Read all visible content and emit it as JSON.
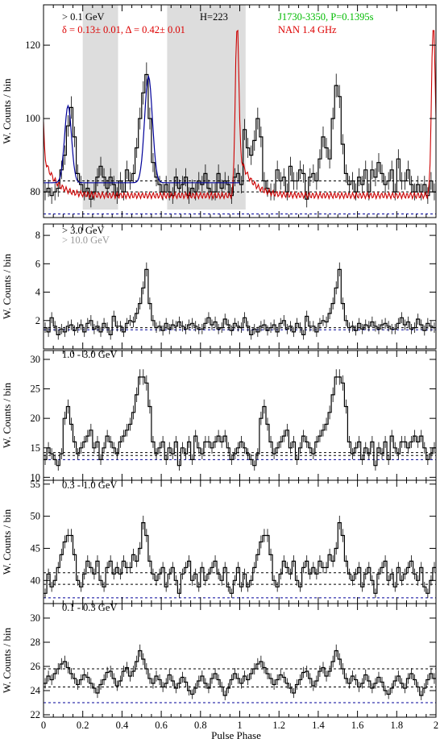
{
  "figure": {
    "xlabel": "Pulse Phase",
    "ylabel": "W. Counts / bin",
    "colors": {
      "histogram": "#000000",
      "radio": "#cc0000",
      "fit": "#000099",
      "bg_level": "#000000",
      "shaded": "#dddddd",
      "pulsar_label": "#00bb00",
      "delta_label": "#dd0000",
      "grey_label": "#999999"
    }
  },
  "chart_data": [
    {
      "type": "line",
      "panel": "top",
      "energy_label": "> 0.1 GeV",
      "extra_labels": {
        "htest": "H=223",
        "pulsar": "J1730-3350, P=0.1395s",
        "radio": "NAN 1.4 GHz",
        "delta": "δ = 0.13± 0.01, Δ = 0.42± 0.01"
      },
      "xlim": [
        0,
        2
      ],
      "ylim": [
        73,
        131
      ],
      "yticks": [
        80,
        100,
        120
      ],
      "xticks": [
        0,
        0.2,
        0.4,
        0.6,
        0.8,
        1,
        1.2,
        1.4,
        1.6,
        1.8,
        2
      ],
      "shaded_phase_ranges": [
        [
          0.2,
          0.38
        ],
        [
          0.63,
          1.03
        ]
      ],
      "background_levels": [
        83,
        80,
        74
      ],
      "series": [
        {
          "role": "gamma",
          "values": [
            80,
            81,
            79,
            80,
            81,
            86,
            90,
            98,
            103,
            95,
            85,
            82,
            80,
            81,
            78,
            80,
            84,
            87,
            84,
            81,
            84,
            82,
            79,
            83,
            80,
            86,
            83,
            85,
            92,
            100,
            107,
            112,
            100,
            88,
            84,
            82,
            80,
            82,
            80,
            79,
            84,
            81,
            82,
            84,
            79,
            81,
            80,
            83,
            82,
            85,
            81,
            80,
            80,
            85,
            81,
            83,
            82,
            79,
            84,
            85,
            82,
            97,
            92,
            90,
            94,
            100,
            95,
            83,
            81,
            80,
            80,
            86,
            83,
            84,
            80,
            87,
            83,
            83,
            86,
            85,
            78,
            84,
            85,
            83,
            89,
            95,
            92,
            89,
            100,
            109,
            106,
            93,
            85,
            82,
            83,
            80,
            84,
            82,
            86,
            80,
            86,
            84,
            88,
            85,
            82,
            83,
            86,
            80,
            89,
            83,
            83,
            86,
            82,
            80,
            82,
            80,
            82,
            79,
            83,
            80
          ]
        },
        {
          "role": "radio",
          "shape": "single narrow pulse near phase 0.0 / 1.0 with exponential decay"
        },
        {
          "role": "fit",
          "shape": "two lorentzian-like peaks over flat baseline, phase 0 to 1"
        }
      ]
    },
    {
      "type": "line",
      "panel": "p2",
      "energy_label": "> 3.0 GeV",
      "energy_label_grey": "> 10.0 GeV",
      "xlim": [
        0,
        2
      ],
      "ylim": [
        0,
        8.8
      ],
      "yticks": [
        2,
        4,
        6,
        8
      ],
      "background_levels": [
        1.5,
        1.35
      ],
      "series": [
        {
          "role": "gamma",
          "values": [
            1.5,
            1.2,
            2.2,
            1.6,
            1.0,
            1.4,
            1.2,
            1.6,
            1.7,
            1.3,
            1.5,
            1.7,
            1.2,
            1.8,
            2.0,
            1.4,
            1.6,
            1.2,
            1.8,
            1.5,
            1.0,
            2.3,
            1.6,
            1.6,
            1.2,
            1.8,
            2.0,
            1.9,
            2.5,
            3.2,
            4.3,
            5.6,
            3.2,
            2.0,
            1.5,
            1.6,
            1.3,
            1.8,
            1.4,
            1.7,
            1.6,
            1.9,
            1.6,
            1.4,
            1.7,
            1.8,
            1.6,
            1.4,
            1.4,
            1.8,
            2.2,
            1.7,
            1.9,
            1.4,
            1.5,
            2.1,
            1.7,
            1.3,
            1.8,
            1.6,
            1.5,
            2.2,
            1.6,
            1.0,
            1.4,
            1.2,
            1.6,
            1.7,
            1.3,
            1.5,
            1.7,
            1.2,
            1.8,
            2.0,
            1.4,
            1.6,
            1.2,
            1.8,
            1.5,
            1.0,
            2.3,
            1.6,
            1.6,
            1.2,
            1.8,
            2.0,
            1.9,
            2.5,
            3.2,
            4.3,
            5.6,
            3.2,
            2.0,
            1.5,
            1.6,
            1.3,
            1.8,
            1.4,
            1.7,
            1.6,
            1.9,
            1.6,
            1.4,
            1.7,
            1.8,
            1.6,
            1.4,
            1.4,
            1.8,
            2.2,
            1.7,
            1.9,
            1.4,
            1.5,
            2.1,
            1.7,
            1.3,
            1.8,
            1.6,
            1.5
          ]
        }
      ]
    },
    {
      "type": "line",
      "panel": "p3",
      "energy_label": "1.0 - 3.0 GeV",
      "xlim": [
        0,
        2
      ],
      "ylim": [
        9.5,
        31.5
      ],
      "yticks": [
        10,
        15,
        20,
        25,
        30
      ],
      "background_levels": [
        14.2,
        13.7,
        13.0
      ],
      "series": [
        {
          "role": "gamma",
          "values": [
            13,
            15,
            14,
            13,
            12,
            14,
            20,
            22,
            19,
            16,
            14,
            15,
            16,
            17,
            18,
            15,
            16,
            13,
            15,
            17,
            16,
            15,
            14,
            16,
            17,
            18,
            19,
            21,
            24,
            27,
            27,
            26,
            22,
            16,
            14,
            15,
            16,
            13,
            15,
            14,
            16,
            12,
            15,
            14,
            16,
            13,
            17,
            15,
            14,
            16,
            16,
            15,
            16,
            17,
            16,
            17,
            15,
            13,
            14,
            15,
            16,
            15,
            14,
            13,
            12,
            14,
            20,
            22,
            19,
            16,
            14,
            15,
            16,
            17,
            18,
            15,
            16,
            13,
            15,
            17,
            16,
            15,
            14,
            16,
            17,
            18,
            19,
            21,
            24,
            27,
            27,
            26,
            22,
            16,
            14,
            15,
            16,
            13,
            15,
            14,
            16,
            12,
            15,
            14,
            16,
            13,
            17,
            15,
            14,
            16,
            16,
            15,
            16,
            17,
            16,
            17,
            15,
            13,
            14,
            15
          ]
        }
      ]
    },
    {
      "type": "line",
      "panel": "p4",
      "energy_label": "0.3 - 1.0 GeV",
      "xlim": [
        0,
        2
      ],
      "ylim": [
        36.4,
        55.6
      ],
      "yticks": [
        40,
        45,
        50,
        55
      ],
      "background_levels": [
        41.2,
        39.4,
        37.3
      ],
      "series": [
        {
          "role": "gamma",
          "values": [
            38,
            41,
            39,
            40,
            42,
            44,
            46,
            47,
            47,
            44,
            40,
            39,
            41,
            43,
            42,
            41,
            43,
            40,
            39,
            42,
            43,
            41,
            42,
            41,
            43,
            42,
            42,
            44,
            43,
            45,
            49,
            47,
            43,
            41,
            40,
            41,
            42,
            39,
            41,
            42,
            40,
            38,
            41,
            42,
            43,
            40,
            41,
            39,
            42,
            40,
            41,
            42,
            43,
            41,
            40,
            42,
            39,
            38,
            40,
            42,
            39,
            41,
            39,
            40,
            42,
            44,
            46,
            47,
            47,
            44,
            40,
            39,
            41,
            43,
            42,
            41,
            43,
            40,
            39,
            42,
            43,
            41,
            42,
            41,
            43,
            42,
            42,
            44,
            43,
            45,
            49,
            47,
            43,
            41,
            40,
            41,
            42,
            39,
            41,
            42,
            40,
            38,
            41,
            42,
            43,
            40,
            41,
            39,
            42,
            40,
            41,
            42,
            43,
            41,
            40,
            42,
            39,
            38,
            40,
            42
          ]
        }
      ]
    },
    {
      "type": "line",
      "panel": "p5",
      "energy_label": "0.1 - 0.3 GeV",
      "xlim": [
        0,
        2
      ],
      "ylim": [
        21.8,
        31.2
      ],
      "yticks": [
        22,
        24,
        26,
        28,
        30
      ],
      "background_levels": [
        25.8,
        24.3,
        23.0
      ],
      "series": [
        {
          "role": "gamma",
          "values": [
            24.6,
            25.2,
            24.9,
            25.4,
            25.8,
            26.2,
            26.4,
            25.9,
            25.4,
            25.0,
            24.5,
            24.9,
            25.3,
            25.1,
            24.6,
            24.2,
            23.8,
            24.5,
            24.9,
            25.5,
            25.6,
            25.0,
            24.4,
            24.8,
            25.6,
            25.9,
            25.2,
            25.6,
            26.4,
            27.3,
            26.6,
            25.8,
            25.0,
            24.6,
            25.2,
            24.9,
            24.3,
            24.6,
            25.3,
            24.8,
            24.2,
            24.6,
            25.1,
            24.7,
            24.0,
            23.7,
            24.2,
            24.8,
            25.2,
            24.6,
            24.2,
            25.0,
            25.4,
            24.9,
            24.3,
            23.6,
            24.2,
            24.9,
            25.4,
            25.0,
            24.6,
            25.2,
            24.9,
            25.4,
            25.8,
            26.2,
            26.4,
            25.9,
            25.4,
            25.0,
            24.5,
            24.9,
            25.3,
            25.1,
            24.6,
            24.2,
            23.8,
            24.5,
            24.9,
            25.5,
            25.6,
            25.0,
            24.4,
            24.8,
            25.6,
            25.9,
            25.2,
            25.6,
            26.4,
            27.3,
            26.6,
            25.8,
            25.0,
            24.6,
            25.2,
            24.9,
            24.3,
            24.6,
            25.3,
            24.8,
            24.2,
            24.6,
            25.1,
            24.7,
            24.0,
            23.7,
            24.2,
            24.8,
            25.2,
            24.6,
            24.2,
            25.0,
            25.4,
            24.9,
            24.3,
            23.6,
            24.2,
            24.9,
            25.4,
            25.0
          ]
        }
      ]
    }
  ]
}
